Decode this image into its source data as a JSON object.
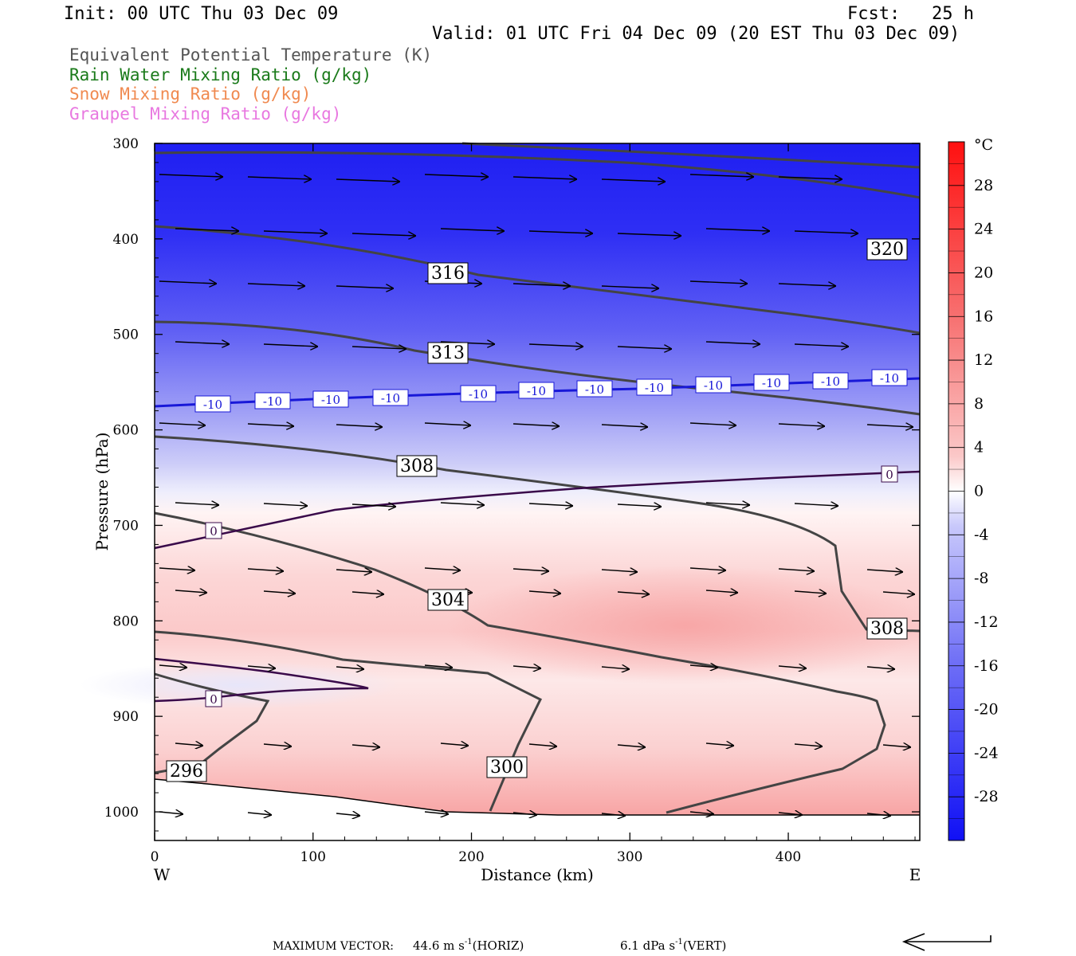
{
  "header": {
    "init": "Init: 00 UTC Thu 03 Dec 09",
    "fcst": "Fcst:   25 h",
    "valid": "Valid: 01 UTC Fri 04 Dec 09 (20 EST Thu 03 Dec 09)"
  },
  "legend": [
    {
      "label": "Equivalent Potential Temperature (K)",
      "color": "#555555"
    },
    {
      "label": "Rain Water Mixing Ratio (g/kg)",
      "color": "#1a7a1a"
    },
    {
      "label": "Snow Mixing Ratio (g/kg)",
      "color": "#f08a50"
    },
    {
      "label": "Graupel Mixing Ratio (g/kg)",
      "color": "#e878e0"
    }
  ],
  "chart_data": {
    "type": "cross-section",
    "xlabel": "Distance (km)",
    "ylabel": "Pressure (hPa)",
    "x_ticks": [
      0,
      100,
      200,
      300,
      400
    ],
    "xlim": [
      0,
      483
    ],
    "y_ticks": [
      300,
      400,
      500,
      600,
      700,
      800,
      900,
      1000
    ],
    "ylim": [
      300,
      1030
    ],
    "x_end_labels": {
      "west": "W",
      "east": "E"
    },
    "colorbar": {
      "unit": "°C",
      "ticks": [
        28,
        24,
        20,
        16,
        12,
        8,
        4,
        0,
        -4,
        -8,
        -12,
        -16,
        -20,
        -24,
        -28
      ],
      "range": [
        -32,
        32
      ]
    },
    "theta_e_labels": [
      "296",
      "300",
      "304",
      "308",
      "308",
      "313",
      "316",
      "320"
    ],
    "isotherm_labels": {
      "minus10": "-10",
      "zero": "0"
    },
    "max_vector": {
      "prefix": "MAXIMUM VECTOR:",
      "horiz_value": "44.6 m s",
      "horiz_unit": "(HORIZ)",
      "vert_value": "6.1 dPa s",
      "vert_unit": "(VERT)",
      "exponent": "-1"
    }
  }
}
